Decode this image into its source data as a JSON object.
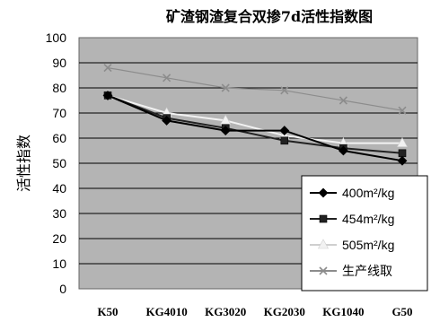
{
  "chart_data": {
    "type": "line",
    "title": "矿渣钢渣复合双掺7d活性指数图",
    "ylabel": "活性指数",
    "xlabel": "",
    "categories": [
      "K50",
      "KG4010",
      "KG3020",
      "KG2030",
      "KG1040",
      "G50"
    ],
    "ylim": [
      0,
      100
    ],
    "yticks": [
      0,
      10,
      20,
      30,
      40,
      50,
      60,
      70,
      80,
      90,
      100
    ],
    "grid": true,
    "legend_position": "lower-right",
    "plot_background": "#b4b4b4",
    "series": [
      {
        "name": "400m²/kg",
        "values": [
          77,
          67,
          63,
          63,
          55,
          51
        ],
        "color": "#000000",
        "marker": "diamond"
      },
      {
        "name": "454m²/kg",
        "values": [
          77,
          68,
          64,
          59,
          56,
          54
        ],
        "color": "#222222",
        "marker": "square"
      },
      {
        "name": "505m²/kg",
        "values": [
          77,
          70,
          67,
          61,
          58,
          58
        ],
        "color": "#f2f2f2",
        "marker": "triangle"
      },
      {
        "name": "生产线取",
        "values": [
          88,
          84,
          80,
          79,
          75,
          71
        ],
        "color": "#8c8c8c",
        "marker": "x"
      }
    ]
  }
}
